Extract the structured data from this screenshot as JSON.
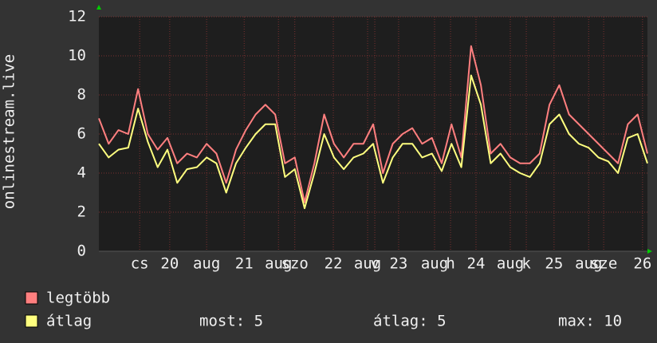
{
  "chart_data": {
    "type": "line",
    "ylabel": "onlinestream.live",
    "xlim": [
      0,
      168
    ],
    "ylim": [
      0,
      12
    ],
    "yticks": [
      0,
      2,
      4,
      6,
      8,
      10,
      12
    ],
    "xticks": [
      {
        "value": 12.5,
        "label": "cs"
      },
      {
        "value": 21.7,
        "label": "20"
      },
      {
        "value": 33,
        "label": "aug"
      },
      {
        "value": 44.5,
        "label": "21"
      },
      {
        "value": 55,
        "label": "aug"
      },
      {
        "value": 60,
        "label": "szo"
      },
      {
        "value": 71.8,
        "label": "22"
      },
      {
        "value": 82.3,
        "label": "aug"
      },
      {
        "value": 84.5,
        "label": "v"
      },
      {
        "value": 91.8,
        "label": "23"
      },
      {
        "value": 102.8,
        "label": "aug"
      },
      {
        "value": 107.7,
        "label": "h"
      },
      {
        "value": 115.5,
        "label": "24"
      },
      {
        "value": 126,
        "label": "aug"
      },
      {
        "value": 130.9,
        "label": "k"
      },
      {
        "value": 139.4,
        "label": "25"
      },
      {
        "value": 150,
        "label": "aug"
      },
      {
        "value": 154.6,
        "label": "sze"
      },
      {
        "value": 166.5,
        "label": "26"
      }
    ],
    "grid": true,
    "x": [
      0,
      3,
      6,
      9,
      12,
      15,
      18,
      21,
      24,
      27,
      30,
      33,
      36,
      39,
      42,
      45,
      48,
      51,
      54,
      57,
      60,
      63,
      66,
      69,
      72,
      75,
      78,
      81,
      84,
      87,
      90,
      93,
      96,
      99,
      102,
      105,
      108,
      111,
      114,
      117,
      120,
      123,
      126,
      129,
      132,
      135,
      138,
      141,
      144,
      147,
      150,
      153,
      156,
      159,
      162,
      165,
      168
    ],
    "series": [
      {
        "name": "legtöbb",
        "color": "#ff7f7f",
        "values": [
          6.8,
          5.5,
          6.2,
          6.0,
          8.3,
          6.0,
          5.2,
          5.8,
          4.5,
          5.0,
          4.8,
          5.5,
          5.0,
          3.5,
          5.2,
          6.2,
          7.0,
          7.5,
          7.0,
          4.5,
          4.8,
          2.5,
          4.5,
          7.0,
          5.5,
          4.8,
          5.5,
          5.5,
          6.5,
          4.0,
          5.5,
          6.0,
          6.3,
          5.5,
          5.8,
          4.5,
          6.5,
          4.8,
          10.5,
          8.5,
          5.0,
          5.5,
          4.8,
          4.5,
          4.5,
          5.0,
          7.5,
          8.5,
          7.0,
          6.5,
          6.0,
          5.5,
          5.0,
          4.5,
          6.5,
          7.0,
          5.0
        ]
      },
      {
        "name": "átlag",
        "color": "#ffff7f",
        "values": [
          5.5,
          4.8,
          5.2,
          5.3,
          7.3,
          5.6,
          4.3,
          5.2,
          3.5,
          4.2,
          4.3,
          4.8,
          4.5,
          3.0,
          4.5,
          5.3,
          6.0,
          6.5,
          6.5,
          3.8,
          4.2,
          2.2,
          4.0,
          6.0,
          4.8,
          4.2,
          4.8,
          5.0,
          5.5,
          3.5,
          4.8,
          5.5,
          5.5,
          4.8,
          5.0,
          4.1,
          5.5,
          4.3,
          9.0,
          7.5,
          4.5,
          5.0,
          4.3,
          4.0,
          3.8,
          4.5,
          6.5,
          7.0,
          6.0,
          5.5,
          5.3,
          4.8,
          4.6,
          4.0,
          5.8,
          6.0,
          4.5
        ]
      }
    ],
    "stats": [
      "most: 5",
      "átlag: 5",
      "max: 10"
    ]
  }
}
